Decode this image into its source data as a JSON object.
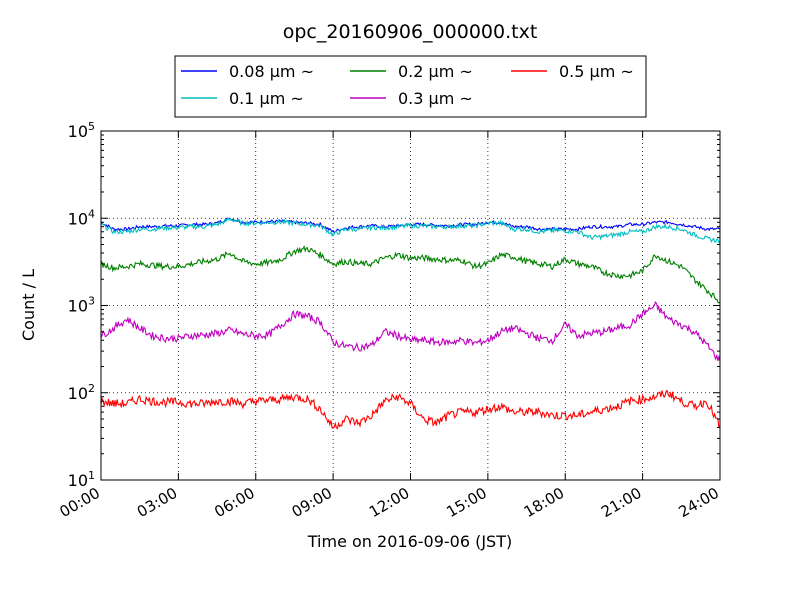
{
  "chart_data": {
    "type": "line",
    "title": "opc_20160906_000000.txt",
    "xlabel": "Time on 2016-09-06 (JST)",
    "ylabel": "Count / L",
    "yscale": "log",
    "ylim": [
      10,
      100000
    ],
    "xlim": [
      "00:00",
      "24:00"
    ],
    "x_ticks": [
      "00:00",
      "03:00",
      "06:00",
      "09:00",
      "12:00",
      "15:00",
      "18:00",
      "21:00",
      "24:00"
    ],
    "y_ticks": [
      {
        "base": "10",
        "exp": "1"
      },
      {
        "base": "10",
        "exp": "2"
      },
      {
        "base": "10",
        "exp": "3"
      },
      {
        "base": "10",
        "exp": "4"
      },
      {
        "base": "10",
        "exp": "5"
      }
    ],
    "grid": true,
    "legend_position": "top-center",
    "x": [
      "00:00",
      "00:30",
      "01:00",
      "01:30",
      "02:00",
      "02:30",
      "03:00",
      "03:30",
      "04:00",
      "04:30",
      "05:00",
      "05:30",
      "06:00",
      "06:30",
      "07:00",
      "07:30",
      "08:00",
      "08:30",
      "09:00",
      "09:30",
      "10:00",
      "10:30",
      "11:00",
      "11:30",
      "12:00",
      "12:30",
      "13:00",
      "13:30",
      "14:00",
      "14:30",
      "15:00",
      "15:30",
      "16:00",
      "16:30",
      "17:00",
      "17:30",
      "18:00",
      "18:30",
      "19:00",
      "19:30",
      "20:00",
      "20:30",
      "21:00",
      "21:30",
      "22:00",
      "22:30",
      "23:00",
      "23:30",
      "24:00"
    ],
    "series": [
      {
        "name": "0.08 μm ~",
        "color": "#0000ff",
        "values": [
          9000,
          7500,
          7500,
          8000,
          8000,
          8200,
          8200,
          8500,
          8500,
          8800,
          10000,
          9000,
          9000,
          9200,
          9200,
          9000,
          8800,
          8500,
          7000,
          7800,
          8000,
          8200,
          8000,
          8200,
          8500,
          8500,
          8300,
          8200,
          8500,
          8500,
          9000,
          9000,
          8000,
          8000,
          7500,
          7500,
          7500,
          7500,
          8000,
          8000,
          8000,
          8500,
          8500,
          9000,
          9000,
          8500,
          8000,
          7500,
          7500
        ]
      },
      {
        "name": "0.1 μm ~",
        "color": "#00bfbf",
        "values": [
          8500,
          7000,
          7000,
          7500,
          7500,
          7800,
          7800,
          8000,
          8000,
          8500,
          9800,
          8800,
          8800,
          9000,
          9000,
          8800,
          8500,
          8200,
          6500,
          7500,
          7500,
          7800,
          7800,
          8000,
          8200,
          8200,
          8000,
          8000,
          8200,
          8200,
          8800,
          8800,
          7500,
          7500,
          7000,
          7200,
          7200,
          7000,
          6000,
          6200,
          6500,
          7000,
          7000,
          8000,
          8000,
          7500,
          6500,
          5800,
          5500
        ]
      },
      {
        "name": "0.2 μm ~",
        "color": "#008000",
        "values": [
          3000,
          2700,
          2800,
          3000,
          2900,
          2800,
          2800,
          3000,
          3200,
          3400,
          4000,
          3200,
          3000,
          3100,
          3400,
          4200,
          4500,
          3800,
          3000,
          3200,
          3000,
          3000,
          3500,
          3800,
          3500,
          3500,
          3400,
          3300,
          3300,
          2800,
          3000,
          3800,
          3600,
          3200,
          3000,
          2800,
          3400,
          3000,
          2800,
          2400,
          2200,
          2200,
          2500,
          3800,
          3200,
          2800,
          2000,
          1500,
          1100
        ]
      },
      {
        "name": "0.3 μm ~",
        "color": "#bf00bf",
        "values": [
          450,
          550,
          700,
          550,
          450,
          420,
          420,
          450,
          460,
          480,
          520,
          470,
          450,
          460,
          600,
          800,
          750,
          650,
          380,
          340,
          330,
          350,
          500,
          450,
          400,
          400,
          380,
          380,
          400,
          370,
          400,
          500,
          550,
          480,
          420,
          400,
          600,
          450,
          480,
          500,
          550,
          600,
          800,
          1000,
          700,
          600,
          500,
          350,
          230
        ]
      },
      {
        "name": "0.5 μm ~",
        "color": "#ff0000",
        "values": [
          80,
          75,
          75,
          85,
          80,
          78,
          78,
          75,
          75,
          80,
          80,
          75,
          80,
          82,
          85,
          90,
          85,
          65,
          40,
          50,
          45,
          55,
          80,
          90,
          75,
          50,
          45,
          55,
          60,
          60,
          65,
          70,
          60,
          60,
          60,
          55,
          55,
          55,
          60,
          65,
          70,
          80,
          85,
          90,
          100,
          80,
          70,
          80,
          40
        ]
      }
    ]
  }
}
